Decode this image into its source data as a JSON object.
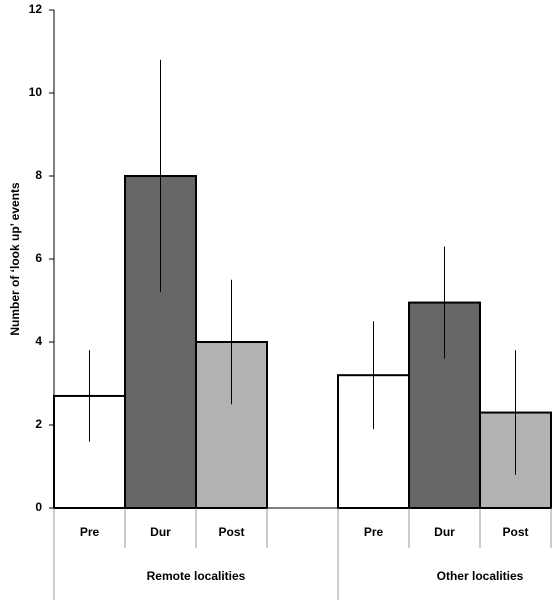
{
  "chart_data": {
    "type": "bar",
    "y_label": "Number of ‘look up’ events",
    "categories": [
      "Remote localities",
      "Other localities"
    ],
    "series": [
      {
        "name": "Pre",
        "color": "#ffffff",
        "values": [
          2.7,
          3.2
        ],
        "errors": [
          1.1,
          1.3
        ]
      },
      {
        "name": "Dur",
        "color": "#666666",
        "values": [
          8.0,
          4.95
        ],
        "errors": [
          2.8,
          1.35
        ]
      },
      {
        "name": "Post",
        "color": "#b3b3b3",
        "values": [
          4.0,
          2.3
        ],
        "errors": [
          1.5,
          1.5
        ]
      }
    ],
    "ylim": [
      0,
      12
    ],
    "yticks": [
      0,
      2,
      4,
      6,
      8,
      10,
      12
    ]
  }
}
